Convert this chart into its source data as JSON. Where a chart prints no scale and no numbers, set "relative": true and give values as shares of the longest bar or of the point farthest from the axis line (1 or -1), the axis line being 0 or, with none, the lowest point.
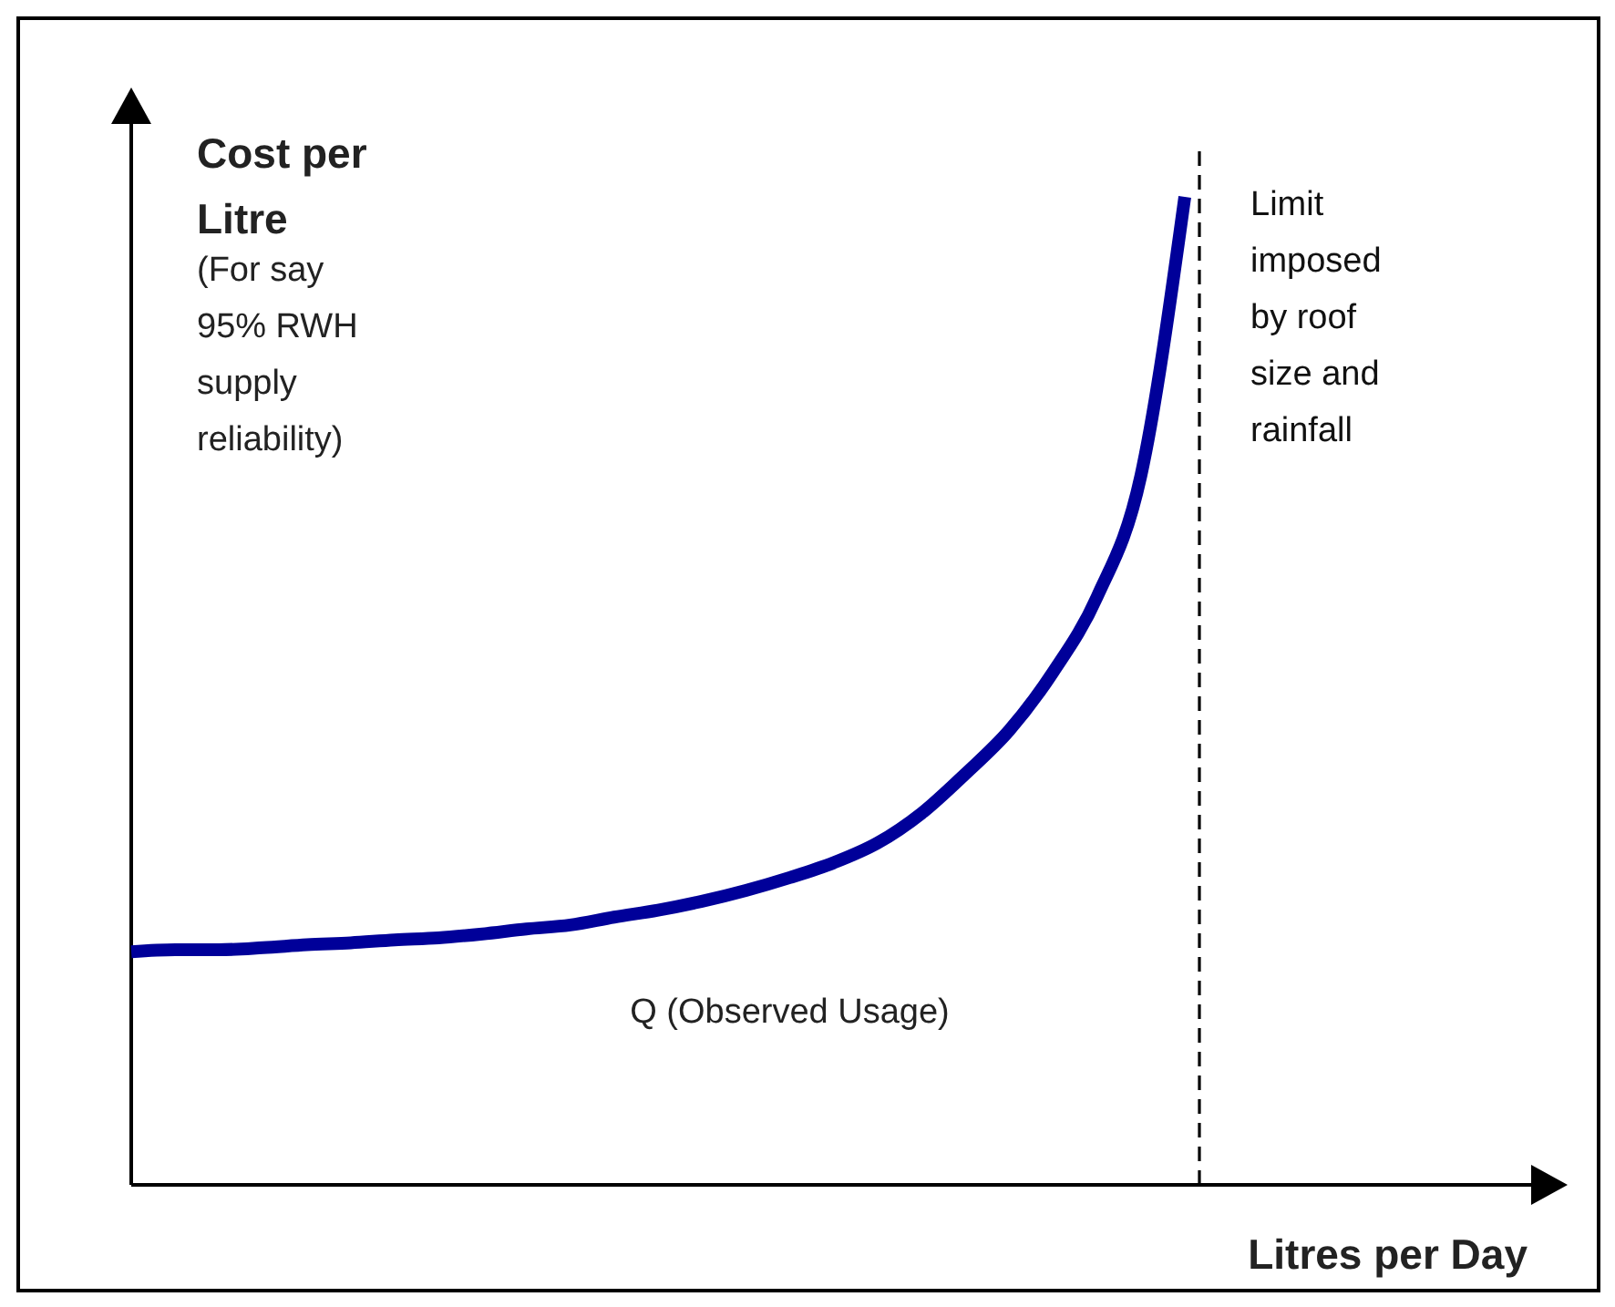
{
  "chart_data": {
    "type": "line",
    "relative": true,
    "ylabel": "Cost per Litre",
    "xlabel": "Litres per Day",
    "categories": [
      null,
      null,
      null,
      null,
      null,
      null,
      null,
      null,
      null,
      null,
      null,
      null,
      null,
      null,
      null,
      null,
      null,
      null,
      null,
      null,
      null,
      null,
      null,
      null,
      null
    ],
    "series": [
      {
        "color": "#000099",
        "values": [
          0.236,
          0.238,
          0.238,
          0.24,
          0.243,
          0.245,
          0.248,
          0.25,
          0.254,
          0.259,
          0.263,
          0.271,
          0.278,
          0.287,
          0.298,
          0.311,
          0.326,
          0.346,
          0.376,
          0.416,
          0.46,
          0.519,
          0.595,
          0.718,
          1
        ]
      }
    ],
    "annotations": [
      "(For say 95% RWH supply reliability)",
      "Q (Observed Usage)",
      "Limit imposed by roof size and rainfall"
    ],
    "marker": "none",
    "line_style": "solid"
  }
}
